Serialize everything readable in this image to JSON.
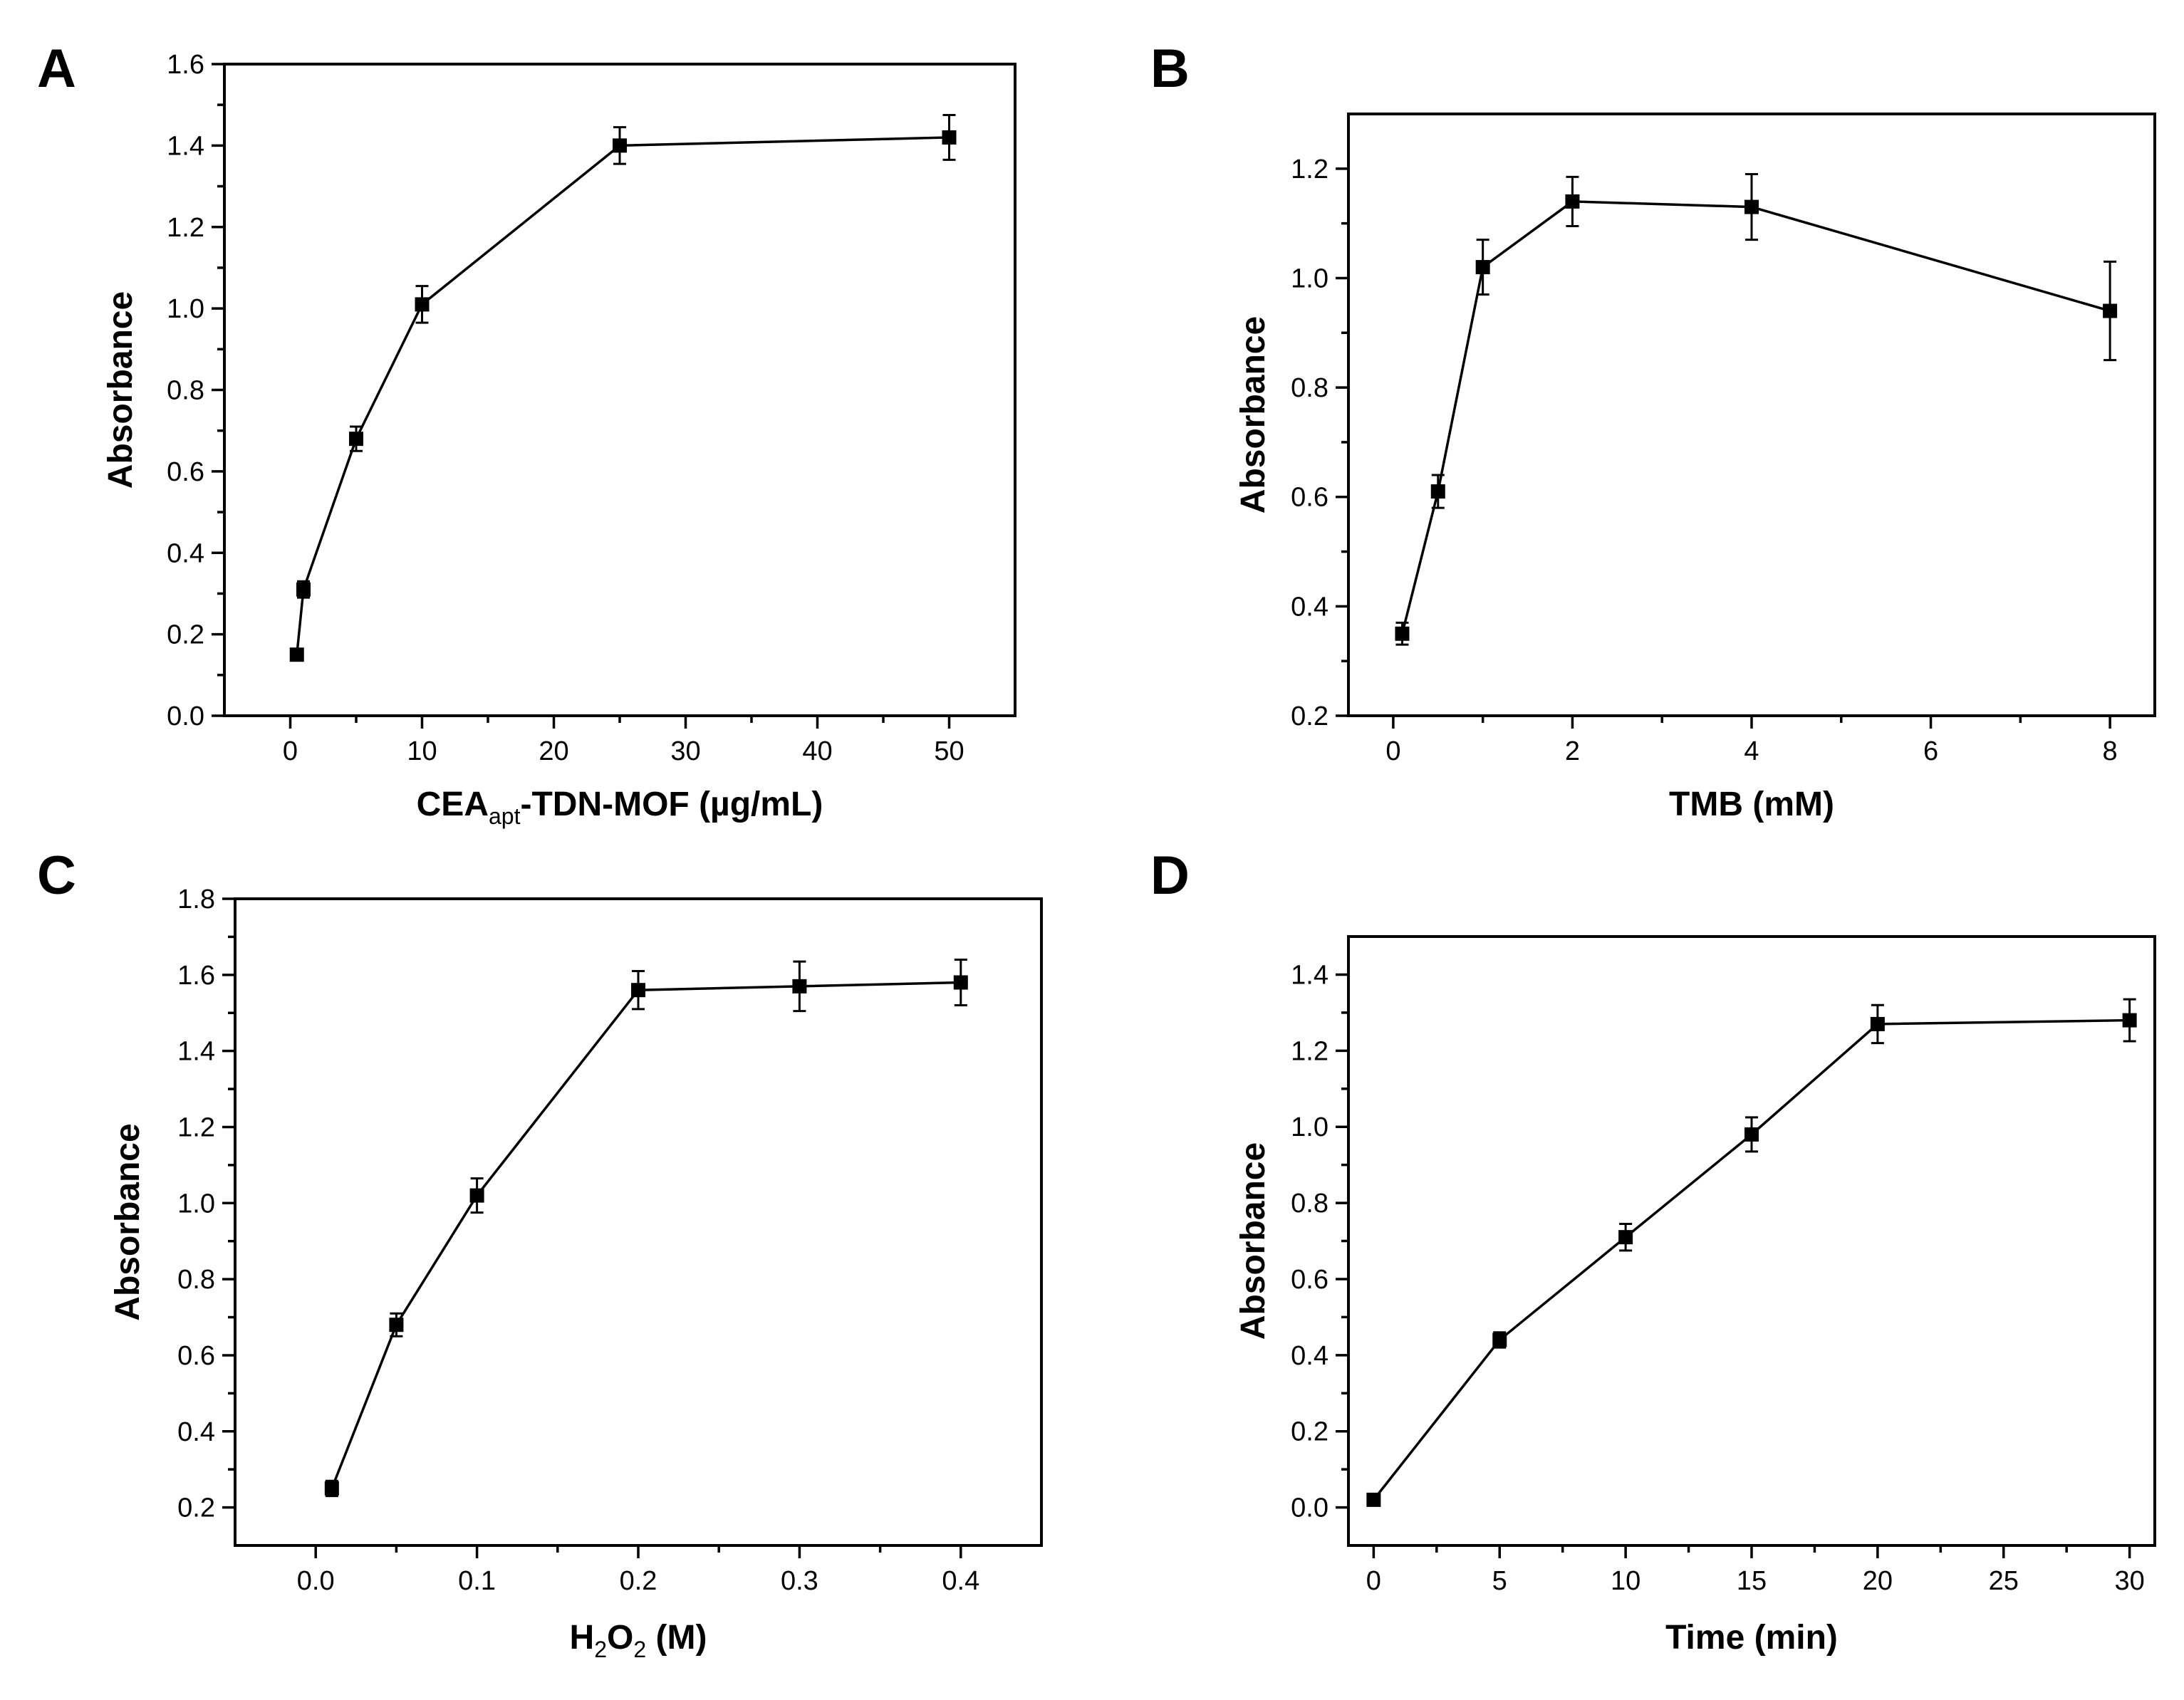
{
  "chart_data": [
    {
      "type": "line",
      "panel": "A",
      "xlabel": "CEA",
      "xlabel_sub": "apt",
      "xlabel_rest": "-TDN-MOF  (µg/mL)",
      "ylabel": "Absorbance",
      "xlim": [
        -5,
        55
      ],
      "ylim": [
        0,
        1.6
      ],
      "xticks": [
        0,
        10,
        20,
        30,
        40,
        50
      ],
      "xtick_labels": [
        "0",
        "10",
        "20",
        "30",
        "40",
        "50"
      ],
      "yticks": [
        0.0,
        0.2,
        0.4,
        0.6,
        0.8,
        1.0,
        1.2,
        1.4,
        1.6
      ],
      "ytick_labels": [
        "0.0",
        "0.2",
        "0.4",
        "0.6",
        "0.8",
        "1.0",
        "1.2",
        "1.4",
        "1.6"
      ],
      "x": [
        0.5,
        1,
        5,
        10,
        25,
        50
      ],
      "y": [
        0.15,
        0.31,
        0.68,
        1.01,
        1.4,
        1.42
      ],
      "err": [
        0.01,
        0.02,
        0.03,
        0.045,
        0.045,
        0.055
      ]
    },
    {
      "type": "line",
      "panel": "B",
      "xlabel": "TMB  (mM)",
      "ylabel": "Absorbance",
      "xlim": [
        -0.5,
        8.5
      ],
      "ylim": [
        0.2,
        1.3
      ],
      "xticks": [
        0,
        1,
        2,
        3,
        4,
        5,
        6,
        7,
        8
      ],
      "xtick_labels": [
        "0",
        "",
        "2",
        "",
        "4",
        "",
        "6",
        "",
        "8"
      ],
      "yticks": [
        0.2,
        0.4,
        0.6,
        0.8,
        1.0,
        1.2
      ],
      "ytick_labels": [
        "0.2",
        "0.4",
        "0.6",
        "0.8",
        "1.0",
        "1.2"
      ],
      "x": [
        0.1,
        0.5,
        1,
        2,
        4,
        8
      ],
      "y": [
        0.35,
        0.61,
        1.02,
        1.14,
        1.13,
        0.94
      ],
      "err": [
        0.02,
        0.03,
        0.05,
        0.045,
        0.06,
        0.09
      ]
    },
    {
      "type": "line",
      "panel": "C",
      "xlabel": "H",
      "xlabel_sub": "2",
      "xlabel_mid": "O",
      "xlabel_sub2": "2",
      "xlabel_rest": " (M)",
      "ylabel": "Absorbance",
      "xlim": [
        -0.05,
        0.45
      ],
      "ylim": [
        0.1,
        1.8
      ],
      "xticks": [
        0.0,
        0.1,
        0.2,
        0.3,
        0.4
      ],
      "xtick_labels": [
        "0.0",
        "0.1",
        "0.2",
        "0.3",
        "0.4"
      ],
      "yticks": [
        0.2,
        0.4,
        0.6,
        0.8,
        1.0,
        1.2,
        1.4,
        1.6,
        1.8
      ],
      "ytick_labels": [
        "0.2",
        "0.4",
        "0.6",
        "0.8",
        "1.0",
        "1.2",
        "1.4",
        "1.6",
        "1.8"
      ],
      "x": [
        0.01,
        0.05,
        0.1,
        0.2,
        0.3,
        0.4
      ],
      "y": [
        0.25,
        0.68,
        1.02,
        1.56,
        1.57,
        1.58
      ],
      "err": [
        0.02,
        0.03,
        0.045,
        0.05,
        0.065,
        0.06
      ]
    },
    {
      "type": "line",
      "panel": "D",
      "xlabel": "Time  (min)",
      "ylabel": "Absorbance",
      "xlim": [
        -1,
        31
      ],
      "ylim": [
        -0.1,
        1.5
      ],
      "xticks": [
        0,
        5,
        10,
        15,
        20,
        25,
        30
      ],
      "xtick_labels": [
        "0",
        "5",
        "10",
        "15",
        "20",
        "25",
        "30"
      ],
      "yticks": [
        0.0,
        0.2,
        0.4,
        0.6,
        0.8,
        1.0,
        1.2,
        1.4
      ],
      "ytick_labels": [
        "0.0",
        "0.2",
        "0.4",
        "0.6",
        "0.8",
        "1.0",
        "1.2",
        "1.4"
      ],
      "x": [
        0,
        5,
        10,
        15,
        20,
        30
      ],
      "y": [
        0.02,
        0.44,
        0.71,
        0.98,
        1.27,
        1.28
      ],
      "err": [
        0.01,
        0.02,
        0.035,
        0.045,
        0.05,
        0.055
      ]
    }
  ]
}
